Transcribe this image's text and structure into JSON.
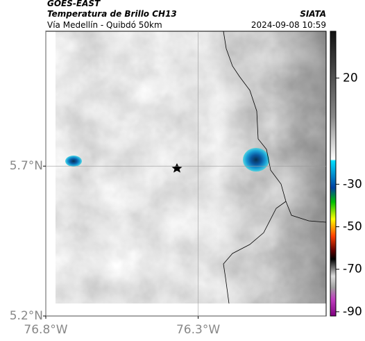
{
  "header": {
    "satellite": "GOES-EAST",
    "product": "Temperatura de Brillo CH13",
    "region": "Vía Medellín - Quibdó 50km",
    "source": "SIATA",
    "datetime": "2024-09-08 10:59"
  },
  "map": {
    "xlim": [
      -76.8,
      -75.88
    ],
    "ylim": [
      5.2,
      6.15
    ],
    "xticks": [
      {
        "value": -76.8,
        "label": "76.8°W"
      },
      {
        "value": -76.3,
        "label": "76.3°W"
      }
    ],
    "yticks": [
      {
        "value": 5.2,
        "label": "5.2°N"
      },
      {
        "value": 5.7,
        "label": "5.7°N"
      }
    ],
    "grid": true
  },
  "colorbar": {
    "lim": [
      -92,
      42
    ],
    "ticks": [
      20,
      -30,
      -50,
      -70,
      -90
    ]
  }
}
